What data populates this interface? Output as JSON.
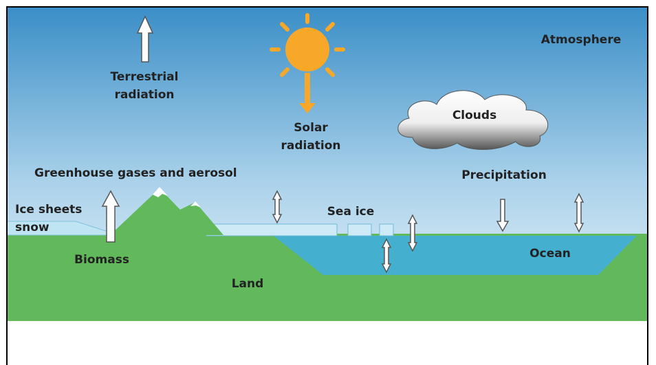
{
  "labels": {
    "terrestrial_radiation": [
      "Terrestrial",
      "radiation"
    ],
    "solar_radiation": [
      "Solar",
      "radiation"
    ],
    "atmosphere": "Atmosphere",
    "clouds": "Clouds",
    "greenhouse": "Greenhouse gases and aerosol",
    "precipitation": "Precipitation",
    "ice_sheets": [
      "Ice sheets",
      "snow"
    ],
    "sea_ice": "Sea ice",
    "biomass": "Biomass",
    "ocean": "Ocean",
    "land": "Land"
  }
}
